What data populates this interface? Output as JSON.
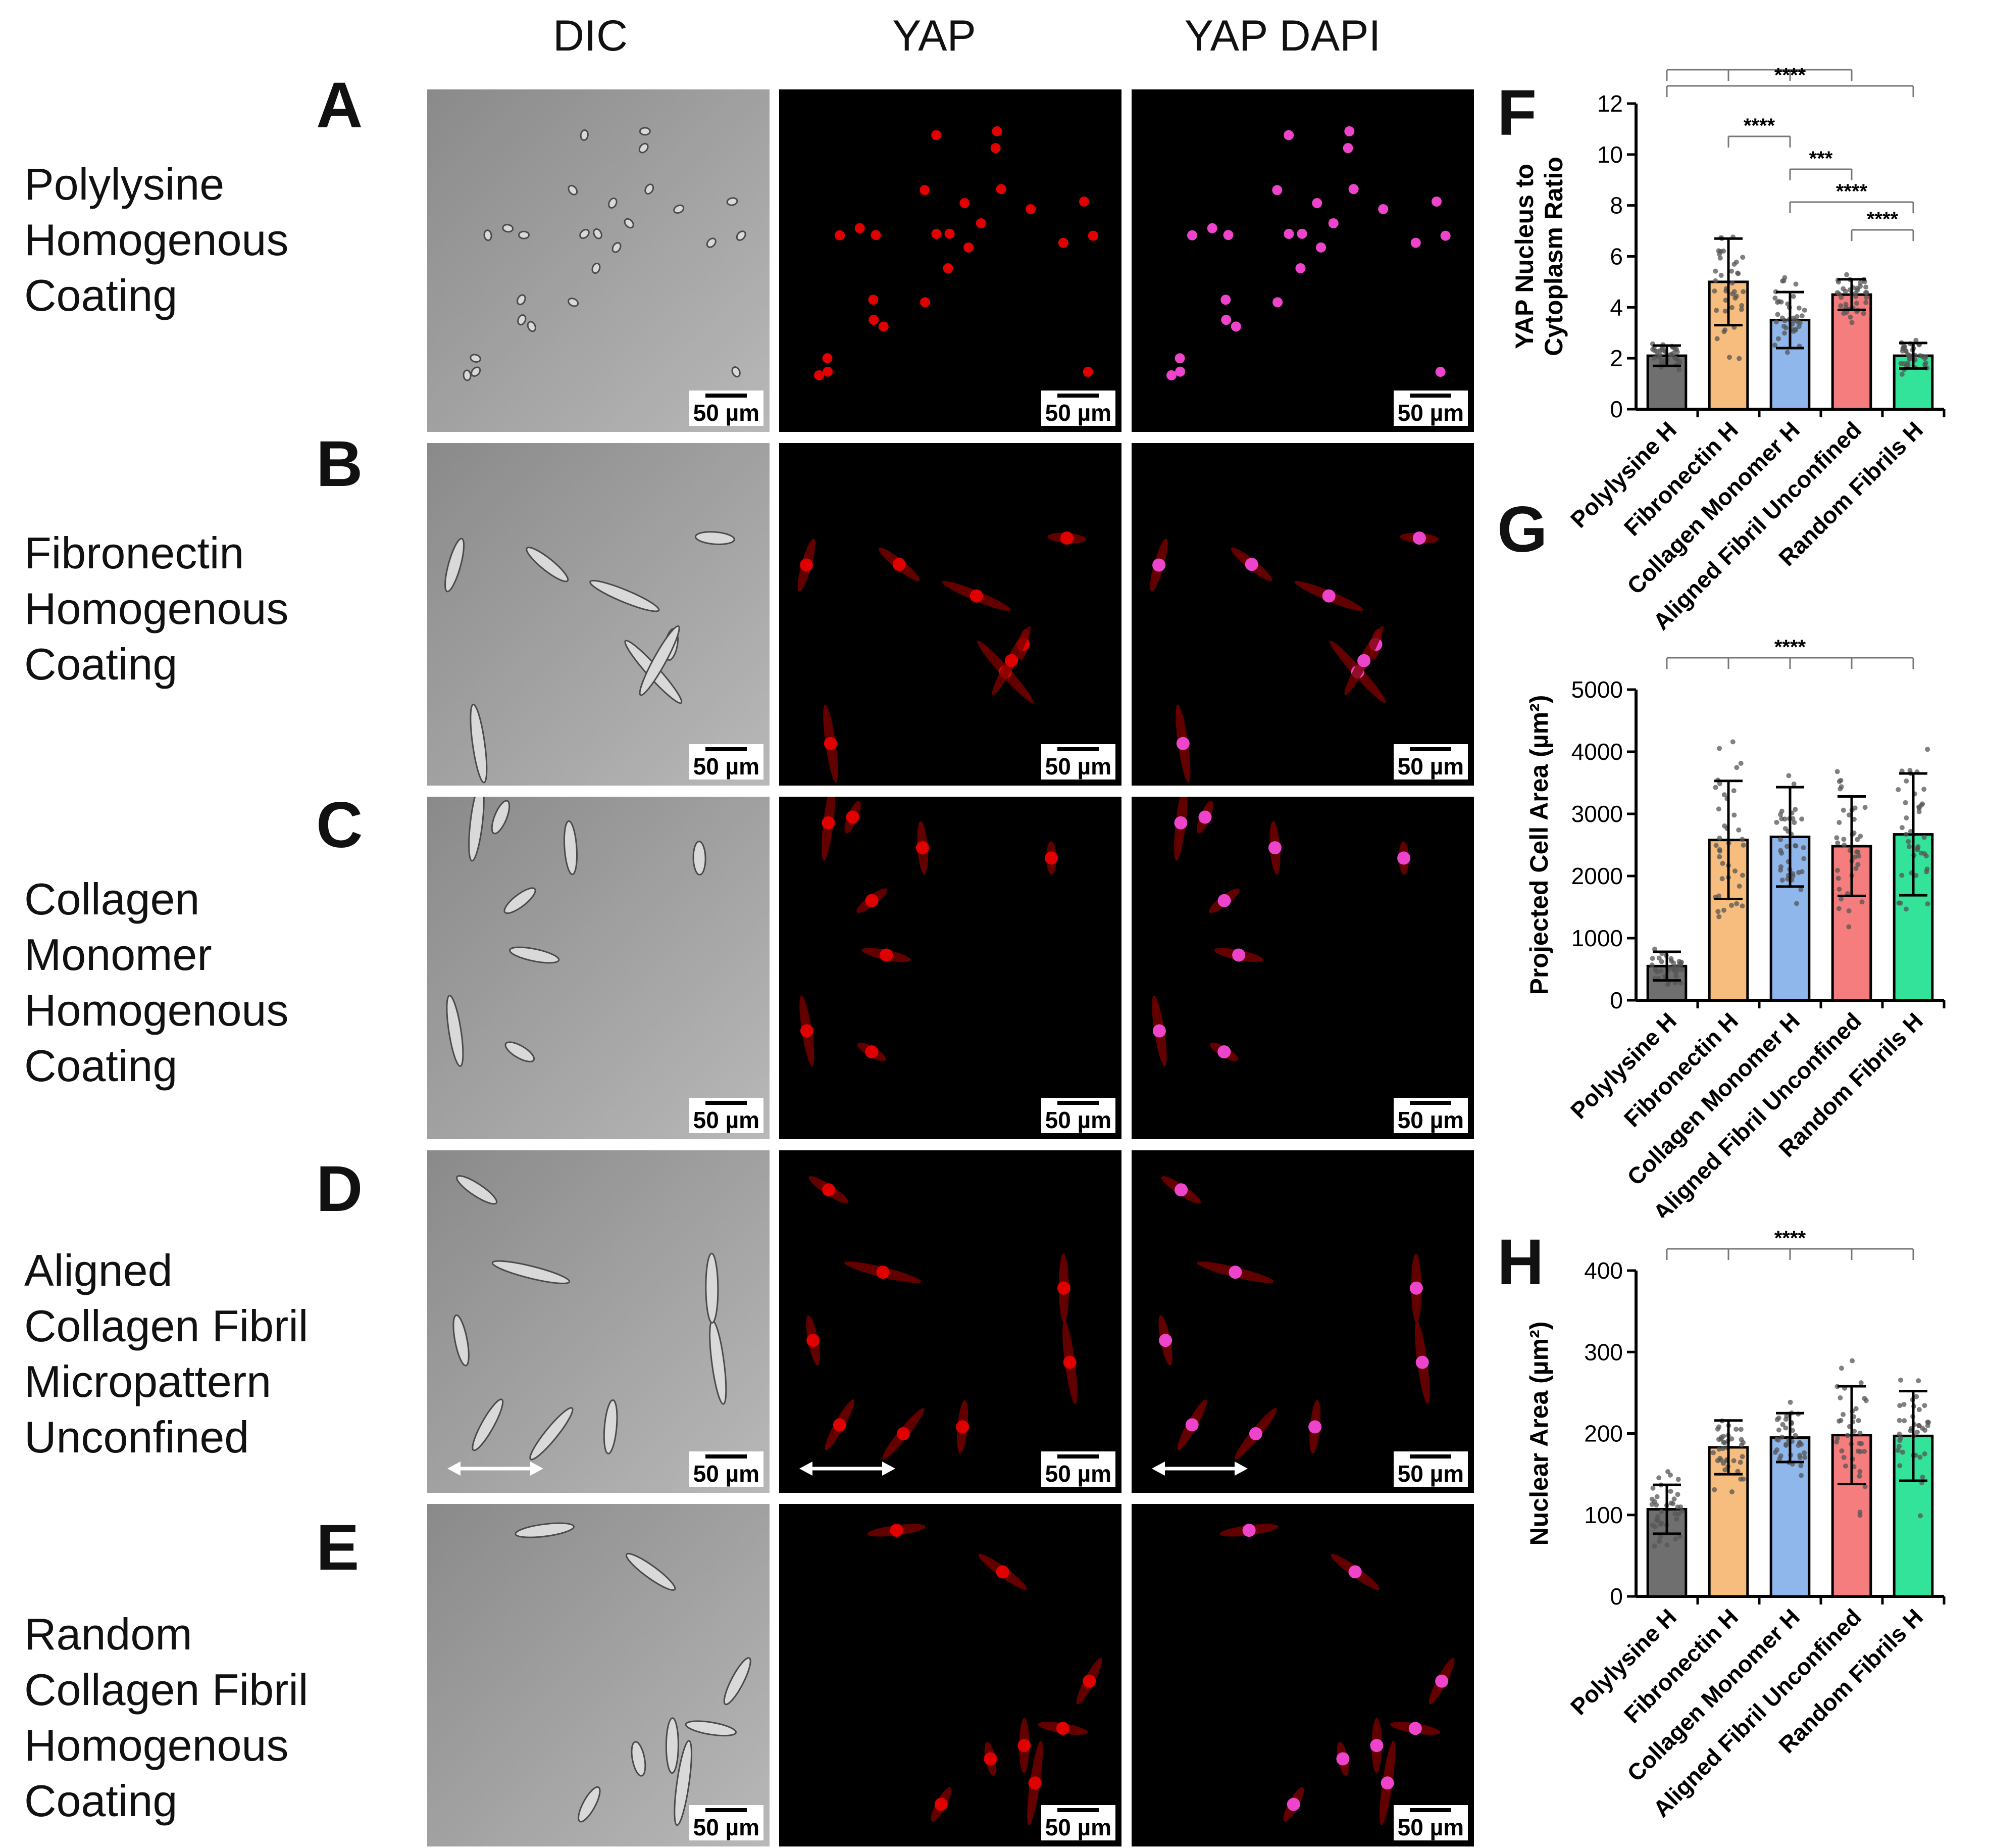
{
  "columns": [
    "DIC",
    "YAP",
    "YAP DAPI"
  ],
  "rows": [
    {
      "letter": "A",
      "label": [
        "Polylysine",
        "Homogenous",
        "Coating"
      ],
      "aligned": false
    },
    {
      "letter": "B",
      "label": [
        "Fibronectin",
        "Homogenous",
        "Coating"
      ],
      "aligned": false
    },
    {
      "letter": "C",
      "label": [
        "Collagen",
        "Monomer",
        "Homogenous",
        "Coating"
      ],
      "aligned": false
    },
    {
      "letter": "D",
      "label": [
        "Aligned",
        "Collagen Fibril",
        "Micropattern",
        "Unconfined"
      ],
      "aligned": true
    },
    {
      "letter": "E",
      "label": [
        "Random",
        "Collagen Fibril",
        "Homogenous",
        "Coating"
      ],
      "aligned": false
    }
  ],
  "scale_bar": "50 µm",
  "chart_data": [
    {
      "panel": "F",
      "type": "bar",
      "ylabel": [
        "YAP Nucleus to",
        "Cytoplasm Ratio"
      ],
      "categories": [
        "Polylysine H",
        "Fibronectin H",
        "Collagen Monomer H",
        "Aligned Fibril Unconfined",
        "Random Fibrils H"
      ],
      "values": [
        2.1,
        5.0,
        3.5,
        4.5,
        2.1
      ],
      "sd": [
        0.4,
        1.7,
        1.1,
        0.6,
        0.5
      ],
      "ylim": [
        0,
        12
      ],
      "yticks": [
        0,
        2,
        4,
        6,
        8,
        10,
        12
      ],
      "colors": [
        "#6f6f6f",
        "#f7bd7e",
        "#8fb7ec",
        "#f57d7d",
        "#33e39a"
      ],
      "significance": [
        {
          "label": "****",
          "from": 0,
          "to": [
            1,
            2,
            3
          ]
        },
        {
          "label": "****",
          "from": 0,
          "to": [
            4
          ]
        },
        {
          "label": "****",
          "from": 1,
          "to": [
            2
          ]
        },
        {
          "label": "***",
          "from": 2,
          "to": [
            3
          ]
        },
        {
          "label": "****",
          "from": 2,
          "to": [
            4
          ]
        },
        {
          "label": "****",
          "from": 3,
          "to": [
            4
          ]
        }
      ]
    },
    {
      "panel": "G",
      "type": "bar",
      "ylabel": [
        "Projected Cell Area (µm²)"
      ],
      "categories": [
        "Polylysine H",
        "Fibronectin H",
        "Collagen Monomer H",
        "Aligned Fibril Unconfined",
        "Random Fibrils H"
      ],
      "values": [
        550,
        2580,
        2630,
        2480,
        2670
      ],
      "sd": [
        230,
        950,
        800,
        800,
        980
      ],
      "ylim": [
        0,
        5000
      ],
      "yticks": [
        0,
        1000,
        2000,
        3000,
        4000,
        5000
      ],
      "colors": [
        "#6f6f6f",
        "#f7bd7e",
        "#8fb7ec",
        "#f57d7d",
        "#33e39a"
      ],
      "significance": [
        {
          "label": "****",
          "from": 0,
          "to": [
            1,
            2,
            3,
            4
          ]
        }
      ]
    },
    {
      "panel": "H",
      "type": "bar",
      "ylabel": [
        "Nuclear Area (µm²)"
      ],
      "categories": [
        "Polylysine H",
        "Fibronectin H",
        "Collagen Monomer H",
        "Aligned Fibril Unconfined",
        "Random Fibrils H"
      ],
      "values": [
        107,
        183,
        195,
        198,
        197
      ],
      "sd": [
        30,
        33,
        30,
        60,
        55
      ],
      "ylim": [
        0,
        400
      ],
      "yticks": [
        0,
        100,
        200,
        300,
        400
      ],
      "colors": [
        "#6f6f6f",
        "#f7bd7e",
        "#8fb7ec",
        "#f57d7d",
        "#33e39a"
      ],
      "significance": [
        {
          "label": "****",
          "from": 0,
          "to": [
            1,
            2,
            3,
            4
          ]
        }
      ]
    }
  ]
}
